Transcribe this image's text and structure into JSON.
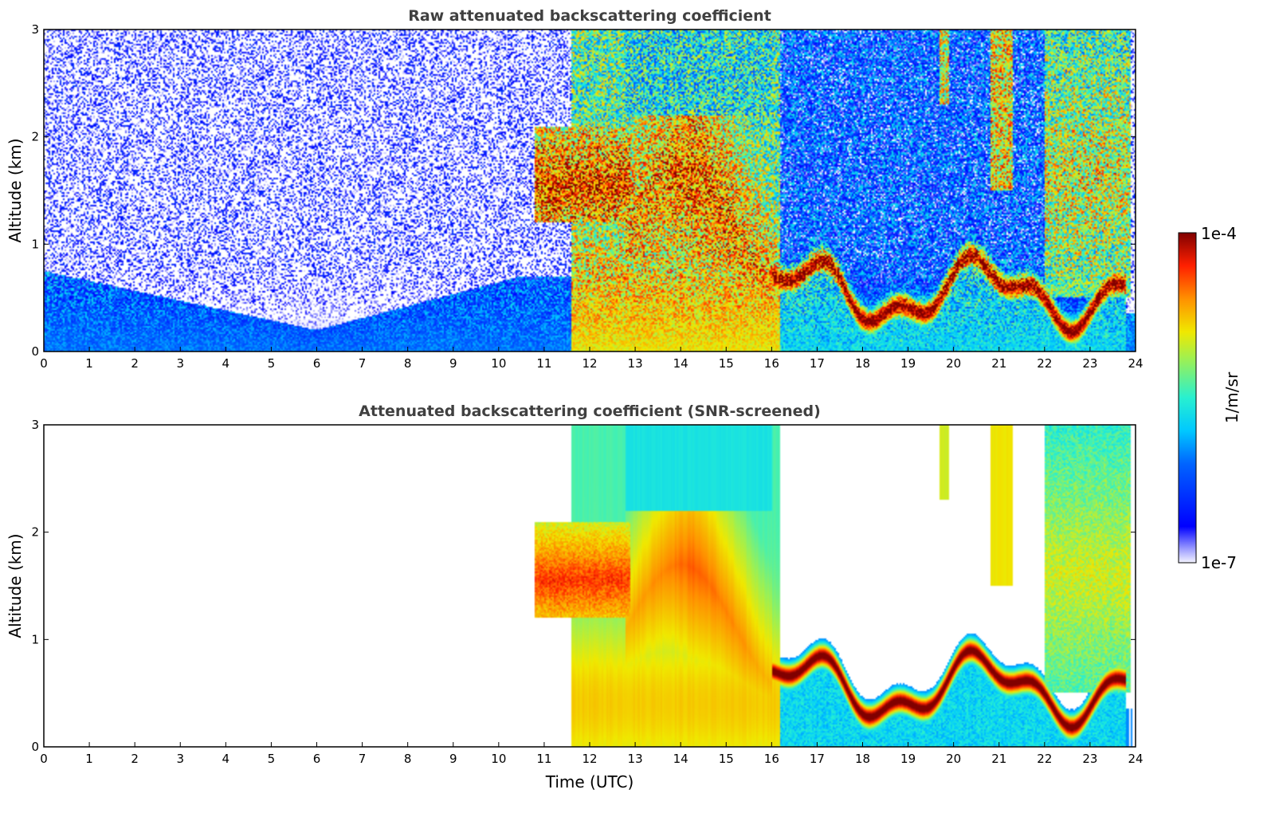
{
  "chart_data": [
    {
      "type": "heatmap",
      "title": "Raw attenuated backscattering coefficient",
      "xlabel": "",
      "ylabel": "Altitude (km)",
      "xlim": [
        0,
        24
      ],
      "ylim": [
        0,
        3
      ],
      "x_ticks": [
        "0",
        "1",
        "2",
        "3",
        "4",
        "5",
        "6",
        "7",
        "8",
        "9",
        "10",
        "11",
        "12",
        "13",
        "14",
        "15",
        "16",
        "17",
        "18",
        "19",
        "20",
        "21",
        "22",
        "23",
        "24"
      ],
      "y_ticks": [
        "0",
        "1",
        "2",
        "3"
      ],
      "grid": false,
      "features": [
        {
          "name": "boundary_layer",
          "x_range": [
            0,
            10.5
          ],
          "top_km_start": 0.75,
          "top_km_min": 0.2,
          "min_time": 6.0,
          "value_log10": -6.1
        },
        {
          "name": "noise_background",
          "x_range": [
            0,
            24
          ],
          "y_range": [
            0.5,
            3
          ],
          "value_log10": -5.9
        },
        {
          "name": "elevated_aerosol_layer",
          "x_range": [
            10.5,
            12.8
          ],
          "y_range": [
            1.3,
            2.1
          ],
          "value_log10": -4.0
        },
        {
          "name": "thick_aerosol_plume",
          "x_range": [
            12.8,
            16.0
          ],
          "y_range": [
            0,
            2.2
          ],
          "value_log10": -4.6
        },
        {
          "name": "low_cloud_layer",
          "x_range": [
            16.0,
            23.8
          ],
          "y_range": [
            0.4,
            1.1
          ],
          "value_log10": -4.0
        },
        {
          "name": "high_cloud",
          "x_range": [
            22.0,
            23.9
          ],
          "y_range": [
            0.5,
            3
          ],
          "value_log10": -4.8
        }
      ]
    },
    {
      "type": "heatmap",
      "title": "Attenuated backscattering coefficient (SNR-screened)",
      "xlabel": "Time (UTC)",
      "ylabel": "Altitude (km)",
      "xlim": [
        0,
        24
      ],
      "ylim": [
        0,
        3
      ],
      "x_ticks": [
        "0",
        "1",
        "2",
        "3",
        "4",
        "5",
        "6",
        "7",
        "8",
        "9",
        "10",
        "11",
        "12",
        "13",
        "14",
        "15",
        "16",
        "17",
        "18",
        "19",
        "20",
        "21",
        "22",
        "23",
        "24"
      ],
      "y_ticks": [
        "0",
        "1",
        "2",
        "3"
      ],
      "grid": false,
      "screening": "low-SNR pixels removed (white)"
    }
  ],
  "colorbar": {
    "label": "1/m/sr",
    "max_label": "1e-4",
    "min_label": "1e-7",
    "scale": "log",
    "colormap": "jet",
    "range": [
      1e-07,
      0.0001
    ]
  }
}
